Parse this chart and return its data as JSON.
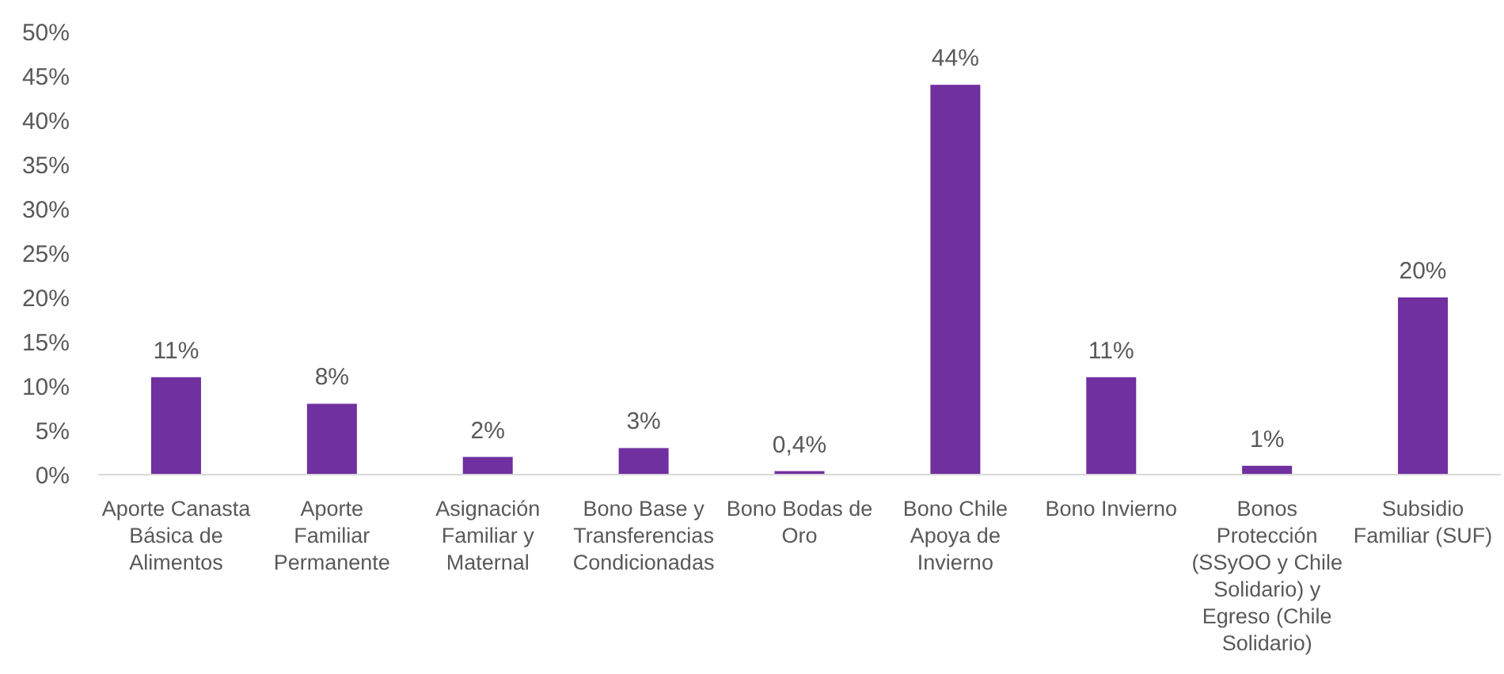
{
  "chart_data": {
    "type": "bar",
    "categories": [
      "Aporte Canasta Básica de Alimentos",
      "Aporte Familiar Permanente",
      "Asignación Familiar y Maternal",
      "Bono Base y Transferencias Condicionadas",
      "Bono Bodas de Oro",
      "Bono Chile Apoya de Invierno",
      "Bono Invierno",
      "Bonos Protección (SSyOO y Chile Solidario) y Egreso (Chile Solidario)",
      "Subsidio Familiar (SUF)"
    ],
    "values": [
      11,
      8,
      2,
      3,
      0.4,
      44,
      11,
      1,
      20
    ],
    "value_labels": [
      "11%",
      "8%",
      "2%",
      "3%",
      "0,4%",
      "44%",
      "11%",
      "1%",
      "20%"
    ],
    "color": "#7030a0",
    "ylim": [
      0,
      50
    ],
    "yticks": [
      {
        "value": 0,
        "label": "0%"
      },
      {
        "value": 5,
        "label": "5%"
      },
      {
        "value": 10,
        "label": "10%"
      },
      {
        "value": 15,
        "label": "15%"
      },
      {
        "value": 20,
        "label": "20%"
      },
      {
        "value": 25,
        "label": "25%"
      },
      {
        "value": 30,
        "label": "30%"
      },
      {
        "value": 35,
        "label": "35%"
      },
      {
        "value": 40,
        "label": "40%"
      },
      {
        "value": 45,
        "label": "45%"
      },
      {
        "value": 50,
        "label": "50%"
      }
    ],
    "grid": false
  }
}
